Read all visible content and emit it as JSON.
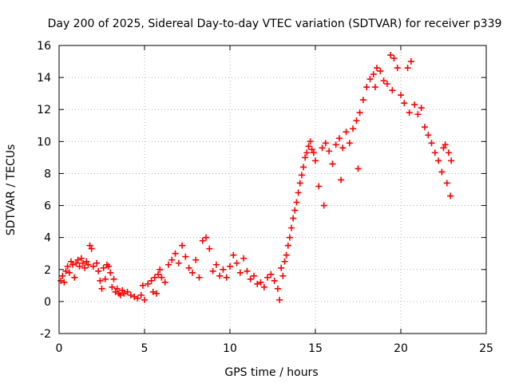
{
  "chart_data": {
    "type": "scatter",
    "title": "Day 200 of 2025, Sidereal Day-to-day VTEC variation (SDTVAR) for receiver p339",
    "xlabel": "GPS time / hours",
    "ylabel": "SDTVAR / TECUs",
    "xlim": [
      0,
      25
    ],
    "ylim": [
      -2,
      16
    ],
    "x_ticks": [
      0,
      5,
      10,
      15,
      20,
      25
    ],
    "x_tick_labels": [
      "0",
      "5",
      "10",
      "15",
      "20",
      "25"
    ],
    "y_ticks": [
      -2,
      0,
      2,
      4,
      6,
      8,
      10,
      12,
      14,
      16
    ],
    "y_tick_labels": [
      "-2",
      "0",
      "2",
      "4",
      "6",
      "8",
      "10",
      "12",
      "14",
      "16"
    ],
    "grid": true,
    "marker": "+",
    "series": [
      {
        "name": "SDTVAR",
        "color": "#ff0000",
        "points": [
          [
            0.1,
            1.3
          ],
          [
            0.2,
            1.6
          ],
          [
            0.3,
            1.2
          ],
          [
            0.4,
            1.9
          ],
          [
            0.5,
            2.2
          ],
          [
            0.6,
            1.8
          ],
          [
            0.7,
            2.5
          ],
          [
            0.8,
            2.3
          ],
          [
            0.9,
            1.5
          ],
          [
            1.0,
            2.4
          ],
          [
            1.1,
            2.6
          ],
          [
            1.2,
            2.2
          ],
          [
            1.3,
            2.7
          ],
          [
            1.4,
            2.4
          ],
          [
            1.5,
            2.1
          ],
          [
            1.6,
            2.5
          ],
          [
            1.7,
            2.3
          ],
          [
            1.8,
            3.5
          ],
          [
            1.9,
            3.3
          ],
          [
            2.0,
            2.2
          ],
          [
            2.2,
            2.4
          ],
          [
            2.3,
            1.9
          ],
          [
            2.4,
            1.3
          ],
          [
            2.5,
            0.8
          ],
          [
            2.6,
            2.1
          ],
          [
            2.7,
            1.4
          ],
          [
            2.8,
            2.3
          ],
          [
            2.9,
            2.2
          ],
          [
            3.0,
            1.8
          ],
          [
            3.1,
            0.9
          ],
          [
            3.2,
            1.4
          ],
          [
            3.3,
            0.6
          ],
          [
            3.4,
            0.8
          ],
          [
            3.5,
            0.5
          ],
          [
            3.6,
            0.4
          ],
          [
            3.7,
            0.7
          ],
          [
            3.8,
            0.5
          ],
          [
            4.0,
            0.6
          ],
          [
            4.2,
            0.4
          ],
          [
            4.4,
            0.3
          ],
          [
            4.6,
            0.2
          ],
          [
            4.8,
            0.4
          ],
          [
            4.9,
            1.0
          ],
          [
            5.0,
            0.1
          ],
          [
            5.2,
            1.1
          ],
          [
            5.4,
            1.3
          ],
          [
            5.5,
            0.6
          ],
          [
            5.6,
            1.5
          ],
          [
            5.7,
            0.5
          ],
          [
            5.8,
            1.7
          ],
          [
            5.9,
            2.0
          ],
          [
            6.0,
            1.5
          ],
          [
            6.2,
            1.2
          ],
          [
            6.4,
            2.3
          ],
          [
            6.6,
            2.6
          ],
          [
            6.8,
            3.0
          ],
          [
            7.0,
            2.4
          ],
          [
            7.2,
            3.5
          ],
          [
            7.4,
            2.8
          ],
          [
            7.6,
            2.1
          ],
          [
            7.8,
            1.8
          ],
          [
            8.0,
            2.6
          ],
          [
            8.2,
            1.5
          ],
          [
            8.4,
            3.8
          ],
          [
            8.6,
            4.0
          ],
          [
            8.8,
            3.3
          ],
          [
            9.0,
            1.9
          ],
          [
            9.2,
            2.3
          ],
          [
            9.4,
            1.6
          ],
          [
            9.6,
            2.0
          ],
          [
            9.8,
            1.5
          ],
          [
            10.0,
            2.2
          ],
          [
            10.2,
            2.9
          ],
          [
            10.4,
            2.4
          ],
          [
            10.6,
            1.8
          ],
          [
            10.8,
            2.7
          ],
          [
            11.0,
            1.9
          ],
          [
            11.2,
            1.4
          ],
          [
            11.4,
            1.6
          ],
          [
            11.6,
            1.1
          ],
          [
            11.8,
            1.2
          ],
          [
            12.0,
            0.9
          ],
          [
            12.2,
            1.5
          ],
          [
            12.4,
            1.7
          ],
          [
            12.6,
            1.3
          ],
          [
            12.8,
            0.8
          ],
          [
            12.9,
            0.1
          ],
          [
            13.0,
            2.1
          ],
          [
            13.1,
            1.6
          ],
          [
            13.2,
            2.5
          ],
          [
            13.3,
            2.9
          ],
          [
            13.4,
            3.5
          ],
          [
            13.5,
            4.0
          ],
          [
            13.6,
            4.6
          ],
          [
            13.7,
            5.2
          ],
          [
            13.8,
            5.7
          ],
          [
            13.9,
            6.2
          ],
          [
            14.0,
            6.8
          ],
          [
            14.1,
            7.4
          ],
          [
            14.2,
            7.9
          ],
          [
            14.3,
            8.4
          ],
          [
            14.4,
            9.0
          ],
          [
            14.5,
            9.3
          ],
          [
            14.6,
            9.7
          ],
          [
            14.7,
            10.0
          ],
          [
            14.8,
            9.5
          ],
          [
            14.9,
            9.3
          ],
          [
            15.0,
            8.8
          ],
          [
            15.2,
            7.2
          ],
          [
            15.4,
            9.6
          ],
          [
            15.5,
            6.0
          ],
          [
            15.6,
            9.9
          ],
          [
            15.8,
            9.4
          ],
          [
            16.0,
            8.6
          ],
          [
            16.2,
            9.8
          ],
          [
            16.4,
            10.2
          ],
          [
            16.5,
            7.6
          ],
          [
            16.6,
            9.6
          ],
          [
            16.8,
            10.6
          ],
          [
            17.0,
            9.9
          ],
          [
            17.2,
            10.8
          ],
          [
            17.4,
            11.3
          ],
          [
            17.5,
            8.3
          ],
          [
            17.6,
            11.8
          ],
          [
            17.8,
            12.6
          ],
          [
            18.0,
            13.4
          ],
          [
            18.2,
            13.9
          ],
          [
            18.4,
            14.2
          ],
          [
            18.5,
            13.4
          ],
          [
            18.6,
            14.6
          ],
          [
            18.8,
            14.4
          ],
          [
            19.0,
            13.8
          ],
          [
            19.2,
            13.6
          ],
          [
            19.4,
            15.4
          ],
          [
            19.5,
            13.2
          ],
          [
            19.6,
            15.2
          ],
          [
            19.8,
            14.6
          ],
          [
            20.0,
            12.9
          ],
          [
            20.2,
            12.4
          ],
          [
            20.4,
            14.6
          ],
          [
            20.5,
            11.8
          ],
          [
            20.6,
            15.0
          ],
          [
            20.8,
            12.3
          ],
          [
            21.0,
            11.7
          ],
          [
            21.2,
            12.1
          ],
          [
            21.4,
            10.9
          ],
          [
            21.6,
            10.4
          ],
          [
            21.8,
            9.9
          ],
          [
            22.0,
            9.3
          ],
          [
            22.2,
            8.8
          ],
          [
            22.4,
            8.1
          ],
          [
            22.5,
            9.6
          ],
          [
            22.6,
            9.8
          ],
          [
            22.7,
            7.4
          ],
          [
            22.8,
            9.3
          ],
          [
            22.9,
            6.6
          ],
          [
            22.95,
            8.8
          ]
        ]
      }
    ]
  }
}
